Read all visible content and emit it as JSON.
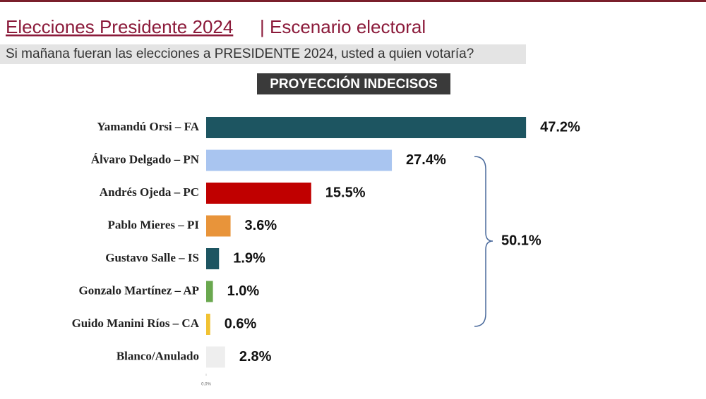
{
  "chart_data": {
    "type": "hbar",
    "title": "Elecciones Presidente 2024",
    "title_suffix": "| Escenario electoral",
    "subtitle": "Si mañana fueran las elecciones a PRESIDENTE 2024, usted a quien votaría?",
    "heading": "PROYECCIÓN INDECISOS",
    "categories": [
      "Yamandú Orsi – FA",
      "Álvaro Delgado – PN",
      "Andrés Ojeda – PC",
      "Pablo Mieres – PI",
      "Gustavo Salle – IS",
      "Gonzalo Martínez – AP",
      "Guido Manini Ríos – CA",
      "Blanco/Anulado"
    ],
    "values": [
      47.2,
      27.4,
      15.5,
      3.6,
      1.9,
      1.0,
      0.6,
      2.8
    ],
    "value_labels": [
      "47.2%",
      "27.4%",
      "15.5%",
      "3.6%",
      "1.9%",
      "1.0%",
      "0.6%",
      "2.8%"
    ],
    "colors": [
      "#1d5561",
      "#a9c5f0",
      "#c00000",
      "#e8943a",
      "#1d5561",
      "#6aa84f",
      "#f1c232",
      "#eeeeee"
    ],
    "bracket_label": "50.1%",
    "xlim": [
      0,
      70
    ],
    "xticks": [
      {
        "value": 0,
        "label": "0.0%"
      }
    ]
  }
}
